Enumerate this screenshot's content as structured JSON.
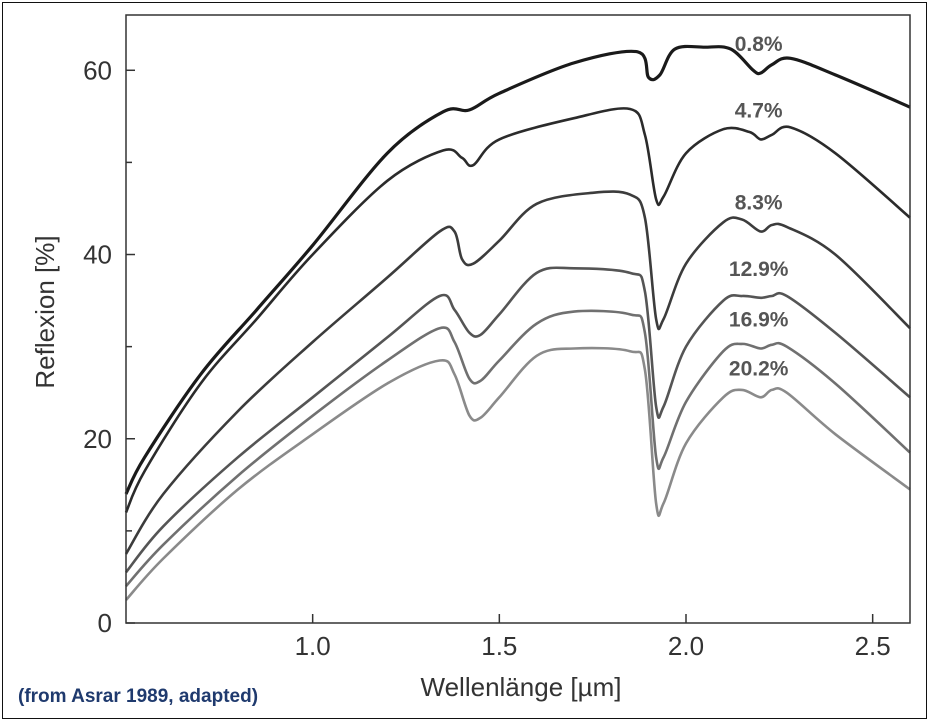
{
  "credit": "(from Asrar 1989, adapted)",
  "chart_data": {
    "type": "line",
    "xlabel": "Wellenlänge [µm]",
    "ylabel": "Reflexion [%]",
    "xlim": [
      0.5,
      2.6
    ],
    "ylim": [
      0,
      66
    ],
    "xticks": [
      1.0,
      1.5,
      2.0,
      2.5
    ],
    "xtick_labels": [
      "1.0",
      "1.5",
      "2.0",
      "2.5"
    ],
    "yticks": [
      0,
      20,
      40,
      60
    ],
    "ytick_labels": [
      "0",
      "20",
      "40",
      "60"
    ],
    "ytick_minor": [
      10,
      30,
      50
    ],
    "grid": false,
    "legend": "none",
    "series": [
      {
        "name": "0.8%",
        "color": "#1a1a1a",
        "x": [
          0.5,
          0.55,
          0.7,
          0.85,
          1.0,
          1.2,
          1.35,
          1.42,
          1.5,
          1.7,
          1.87,
          1.9,
          1.93,
          1.97,
          2.05,
          2.12,
          2.18,
          2.2,
          2.23,
          2.28,
          2.4,
          2.6
        ],
        "y": [
          14,
          18,
          27,
          34,
          41,
          51,
          55.5,
          55.7,
          57.5,
          60.8,
          62,
          59.2,
          59.5,
          62.3,
          62.5,
          62.3,
          60,
          59.7,
          60.6,
          61.3,
          59.5,
          56
        ]
      },
      {
        "name": "4.7%",
        "color": "#2b2b2b",
        "x": [
          0.5,
          0.55,
          0.7,
          0.85,
          1.0,
          1.2,
          1.35,
          1.4,
          1.43,
          1.5,
          1.7,
          1.85,
          1.89,
          1.92,
          1.94,
          2.0,
          2.1,
          2.17,
          2.2,
          2.23,
          2.28,
          2.4,
          2.6
        ],
        "y": [
          12,
          16.5,
          26,
          33,
          40,
          48,
          51.3,
          50.5,
          49.7,
          52.5,
          54.8,
          55.8,
          53,
          46,
          46.3,
          51,
          53.6,
          53.3,
          52.5,
          53,
          53.8,
          51,
          44
        ]
      },
      {
        "name": "8.3%",
        "color": "#3c3c3c",
        "x": [
          0.5,
          0.6,
          0.8,
          1.0,
          1.2,
          1.34,
          1.38,
          1.4,
          1.43,
          1.5,
          1.6,
          1.75,
          1.85,
          1.89,
          1.92,
          1.94,
          2.0,
          2.1,
          2.15,
          2.2,
          2.23,
          2.27,
          2.4,
          2.6
        ],
        "y": [
          7.5,
          14,
          23,
          30.5,
          37.5,
          42.5,
          42.5,
          39.5,
          39,
          41.5,
          45.5,
          46.7,
          46.5,
          44,
          33,
          33,
          39,
          43.5,
          43.8,
          42.5,
          43.2,
          43,
          40,
          32
        ]
      },
      {
        "name": "12.9%",
        "color": "#555555",
        "x": [
          0.5,
          0.6,
          0.8,
          1.0,
          1.2,
          1.34,
          1.38,
          1.42,
          1.45,
          1.5,
          1.6,
          1.7,
          1.85,
          1.89,
          1.92,
          1.94,
          2.0,
          2.1,
          2.15,
          2.2,
          2.23,
          2.27,
          2.4,
          2.6
        ],
        "y": [
          5.5,
          10.5,
          18,
          24.5,
          31,
          35.5,
          34,
          31.5,
          31.3,
          33.5,
          38,
          38.5,
          38,
          36,
          23.5,
          23.5,
          30,
          35,
          35.5,
          35.3,
          35.5,
          35.5,
          31.5,
          24.5
        ]
      },
      {
        "name": "16.9%",
        "color": "#707070",
        "x": [
          0.5,
          0.6,
          0.8,
          1.0,
          1.2,
          1.34,
          1.38,
          1.42,
          1.45,
          1.5,
          1.6,
          1.7,
          1.85,
          1.89,
          1.92,
          1.94,
          2.0,
          2.1,
          2.15,
          2.2,
          2.23,
          2.27,
          2.4,
          2.6
        ],
        "y": [
          4,
          8.5,
          16,
          22.5,
          28.5,
          32,
          30.5,
          26.5,
          26.3,
          28.5,
          32.5,
          33.8,
          33.5,
          31.5,
          18,
          18,
          24,
          29.5,
          30.3,
          29.8,
          30.2,
          30,
          26,
          18.5
        ]
      },
      {
        "name": "20.2%",
        "color": "#8a8a8a",
        "x": [
          0.5,
          0.6,
          0.8,
          1.0,
          1.2,
          1.34,
          1.38,
          1.42,
          1.45,
          1.5,
          1.6,
          1.7,
          1.85,
          1.89,
          1.92,
          1.94,
          2.0,
          2.1,
          2.15,
          2.2,
          2.23,
          2.27,
          2.4,
          2.6
        ],
        "y": [
          2.5,
          7,
          14.5,
          20.5,
          26,
          28.5,
          27,
          22.5,
          22.3,
          24.5,
          29,
          29.8,
          29.5,
          27.5,
          13,
          13,
          19.5,
          24.5,
          25.3,
          24.5,
          25.3,
          25,
          20.5,
          14.5
        ]
      }
    ]
  }
}
